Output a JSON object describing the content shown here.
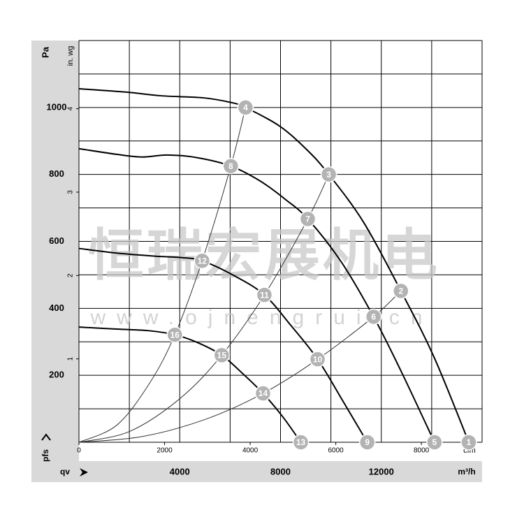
{
  "chart_data": {
    "type": "line",
    "y_label": "Pa",
    "y2_label": "in. wg",
    "y_axis_symbol": "pfs",
    "x_axis_symbol": "qv",
    "x_label": "m³/h",
    "x2_label": "cfm",
    "watermark": "恒瑞宏展机电",
    "watermark_url": "www.ojnengrui.cn",
    "xlim": [
      0,
      16000
    ],
    "xticks": [
      4000,
      8000,
      12000
    ],
    "xgrid": [
      0,
      2000,
      4000,
      6000,
      8000,
      10000,
      12000,
      14000,
      16000
    ],
    "ylim": [
      0,
      1200
    ],
    "yticks": [
      200,
      400,
      600,
      800,
      1000
    ],
    "ygrid": [
      0,
      100,
      200,
      300,
      400,
      500,
      600,
      700,
      800,
      900,
      1000,
      1100,
      1200
    ],
    "x2lim": [
      0,
      9418
    ],
    "x2ticks": [
      0,
      2000,
      4000,
      6000,
      8000
    ],
    "y2lim": [
      0,
      4.818
    ],
    "y2ticks": [
      1,
      2,
      3,
      4
    ],
    "grid": true,
    "series": [
      {
        "color": "#000000",
        "width": 2,
        "x": [
          0,
          1861,
          3250,
          4917,
          6028,
          6611,
          7972,
          9083,
          9917,
          11306,
          12778,
          14083,
          15472
        ],
        "values": [
          1056,
          1046,
          1035,
          1029,
          1015,
          1000,
          944,
          871,
          800,
          656,
          452,
          256,
          0
        ]
      },
      {
        "color": "#000000",
        "width": 2,
        "x": [
          0,
          1500,
          2500,
          3500,
          4700,
          6028,
          7200,
          8200,
          9083,
          10400,
          11694,
          12800,
          14111
        ],
        "values": [
          877,
          860,
          852,
          858,
          850,
          825,
          780,
          725,
          667,
          540,
          375,
          210,
          0
        ]
      },
      {
        "color": "#000000",
        "width": 2,
        "x": [
          0,
          1500,
          3000,
          4000,
          4889,
          6200,
          7361,
          8400,
          9472,
          10500,
          11444
        ],
        "values": [
          579,
          565,
          556,
          552,
          542,
          496,
          440,
          350,
          248,
          120,
          0
        ]
      },
      {
        "color": "#000000",
        "width": 2,
        "x": [
          0,
          1500,
          2800,
          3806,
          4700,
          5667,
          6500,
          7306,
          8100,
          8806
        ],
        "values": [
          344,
          338,
          333,
          321,
          298,
          260,
          205,
          146,
          75,
          0
        ]
      },
      {
        "color": "#333333",
        "width": 1,
        "x": [
          0,
          1500,
          2800,
          3806,
          4889,
          6028,
          6611
        ],
        "values": [
          0,
          51,
          176,
          321,
          542,
          825,
          1000
        ]
      },
      {
        "color": "#333333",
        "width": 1,
        "x": [
          0,
          2000,
          4000,
          5667,
          7361,
          9083,
          9917
        ],
        "values": [
          0,
          32,
          130,
          260,
          440,
          667,
          800
        ]
      },
      {
        "color": "#333333",
        "width": 1,
        "x": [
          0,
          2500,
          5000,
          7306,
          9472,
          11694,
          12778
        ],
        "values": [
          0,
          17,
          68,
          146,
          248,
          375,
          452
        ]
      }
    ],
    "marker_color": "#b3b3b3",
    "markers": [
      {
        "label": "1",
        "x": 15472,
        "y": 0
      },
      {
        "label": "2",
        "x": 12778,
        "y": 452
      },
      {
        "label": "3",
        "x": 9917,
        "y": 800
      },
      {
        "label": "4",
        "x": 6611,
        "y": 1000
      },
      {
        "label": "5",
        "x": 14111,
        "y": 0
      },
      {
        "label": "6",
        "x": 11694,
        "y": 375
      },
      {
        "label": "7",
        "x": 9083,
        "y": 667
      },
      {
        "label": "8",
        "x": 6028,
        "y": 825
      },
      {
        "label": "9",
        "x": 11444,
        "y": 0
      },
      {
        "label": "10",
        "x": 9472,
        "y": 248
      },
      {
        "label": "11",
        "x": 7361,
        "y": 440
      },
      {
        "label": "12",
        "x": 4889,
        "y": 542
      },
      {
        "label": "13",
        "x": 8806,
        "y": 0
      },
      {
        "label": "14",
        "x": 7306,
        "y": 146
      },
      {
        "label": "15",
        "x": 5667,
        "y": 260
      },
      {
        "label": "16",
        "x": 3806,
        "y": 321
      }
    ]
  }
}
